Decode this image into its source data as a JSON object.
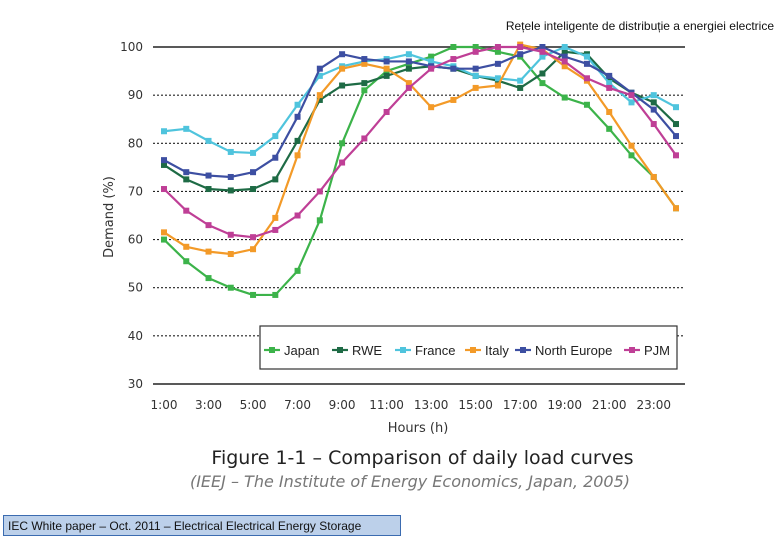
{
  "header": {
    "text": "Rețele inteligente de distribuție a energiei electrice"
  },
  "figure": {
    "title": "Figure 1-1 – Comparison of daily load curves",
    "source": "(IEEJ – The Institute of Energy Economics, Japan, 2005)"
  },
  "footer": {
    "text": "IEC White paper – Oct. 2011 – Electrical Electrical Energy Storage"
  },
  "chart_data": {
    "type": "line",
    "xlabel": "Hours (h)",
    "ylabel": "Demand (%)",
    "ylim": [
      30,
      100
    ],
    "xlim": [
      1,
      24
    ],
    "yticks": [
      "30",
      "40",
      "50",
      "60",
      "70",
      "80",
      "90",
      "100"
    ],
    "xticks": [
      "1:00",
      "3:00",
      "5:00",
      "7:00",
      "9:00",
      "11:00",
      "13:00",
      "15:00",
      "17:00",
      "19:00",
      "21:00",
      "23:00"
    ],
    "grid": "horizontal-dashed",
    "legend_position": "bottom-inside",
    "x": [
      1,
      2,
      3,
      4,
      5,
      6,
      7,
      8,
      9,
      10,
      11,
      12,
      13,
      14,
      15,
      16,
      17,
      18,
      19,
      20,
      21,
      22,
      23,
      24
    ],
    "series": [
      {
        "name": "Japan",
        "color": "#3cb34a",
        "values": [
          60,
          55.5,
          52,
          50,
          48.5,
          48.5,
          53.5,
          64,
          80,
          91,
          95,
          96.5,
          98,
          100,
          100,
          99,
          98,
          92.5,
          89.5,
          88,
          83,
          77.5,
          73,
          66.5
        ]
      },
      {
        "name": "RWE",
        "color": "#1e6b45",
        "values": [
          75.5,
          72.5,
          70.5,
          70.2,
          70.5,
          72.5,
          80.5,
          89,
          92,
          92.5,
          94,
          95.5,
          96,
          95.5,
          94,
          93,
          91.5,
          94.5,
          99,
          98.5,
          93.5,
          90.5,
          88.5,
          84
        ]
      },
      {
        "name": "France",
        "color": "#4fc4dd",
        "values": [
          82.5,
          83,
          80.5,
          78.2,
          78,
          81.5,
          88,
          94,
          96,
          97,
          97.5,
          98.5,
          97,
          96,
          94,
          93.5,
          93,
          98,
          100,
          98,
          92.5,
          88.5,
          90,
          87.5
        ]
      },
      {
        "name": "Italy",
        "color": "#f39a28",
        "values": [
          61.5,
          58.5,
          57.5,
          57,
          58,
          64.5,
          77.5,
          90,
          95.5,
          96.5,
          95.5,
          92.5,
          87.5,
          89,
          91.5,
          92,
          100.5,
          99.5,
          96,
          93,
          86.5,
          79.5,
          73,
          66.5
        ]
      },
      {
        "name": "North Europe",
        "color": "#3d4fa2",
        "values": [
          76.5,
          74,
          73.3,
          73,
          74,
          77,
          85.5,
          95.5,
          98.5,
          97.5,
          97,
          97,
          96,
          95.5,
          95.5,
          96.5,
          98.5,
          100,
          98,
          96.5,
          94,
          90.5,
          87,
          81.5
        ]
      },
      {
        "name": "PJM",
        "color": "#bf3f96",
        "values": [
          70.5,
          66,
          63,
          61,
          60.5,
          62,
          65,
          70,
          76,
          81,
          86.5,
          91.5,
          95.5,
          97.5,
          99,
          100,
          100,
          99,
          97,
          93.5,
          91.5,
          90,
          84,
          77.5
        ]
      }
    ]
  }
}
